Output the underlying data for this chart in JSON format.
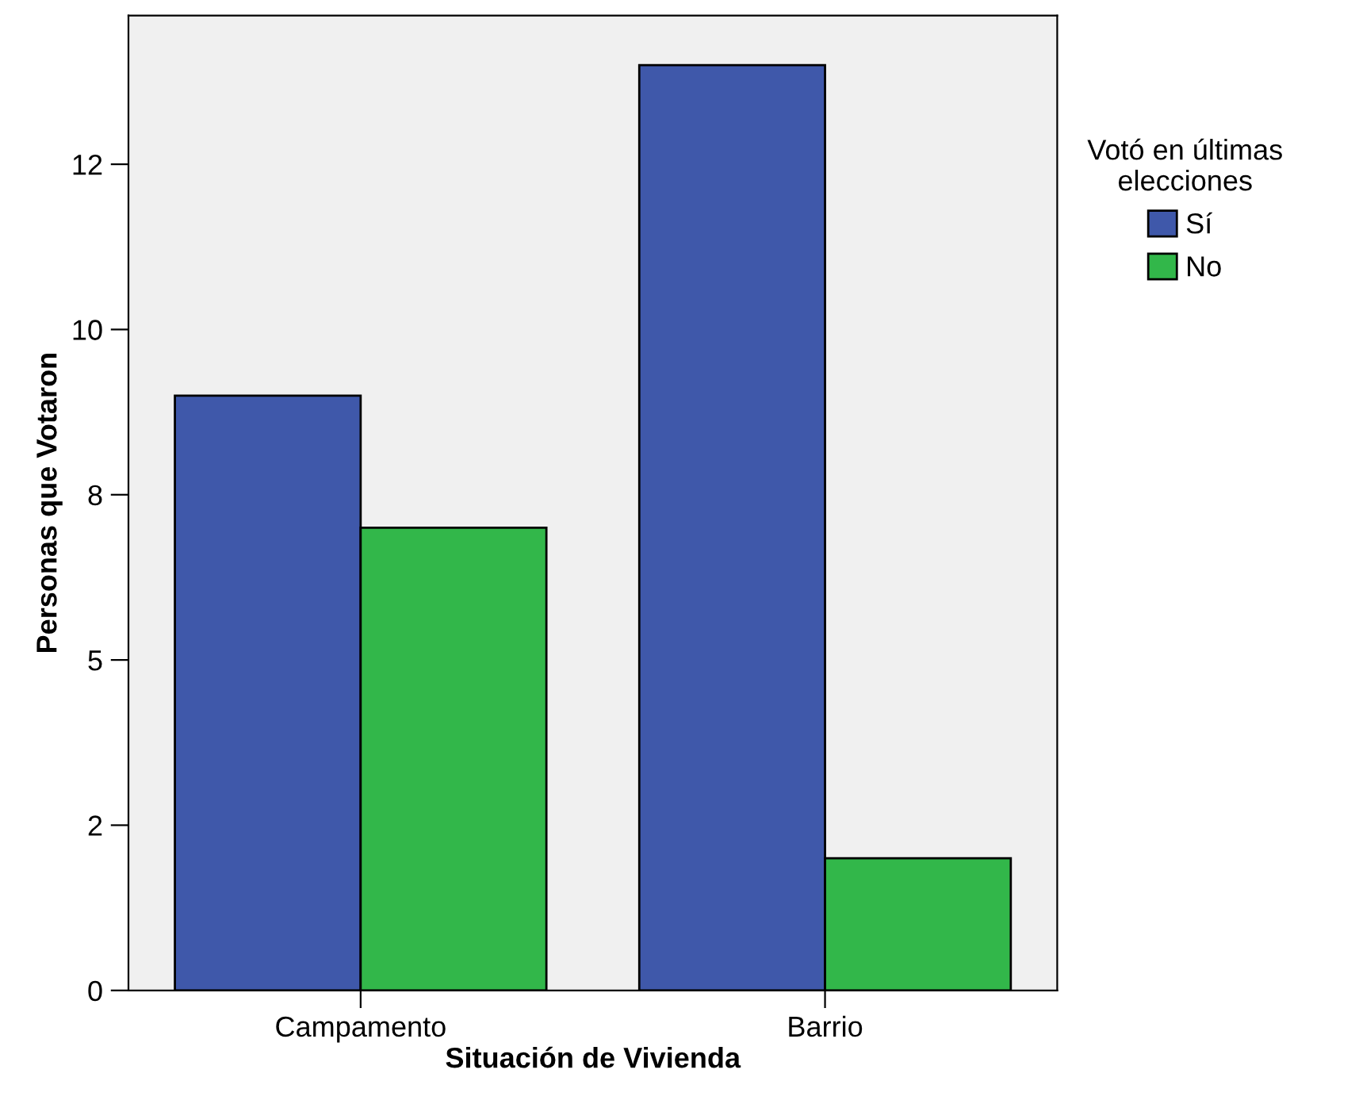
{
  "chart_data": {
    "type": "bar",
    "xlabel": "Situación de Vivienda",
    "ylabel": "Personas que Votaron",
    "legend_title": "Votó en últimas\nelecciones",
    "categories": [
      "Campamento",
      "Barrio"
    ],
    "series": [
      {
        "name": "Sí",
        "color": "#3f58aa",
        "values": [
          9,
          14
        ]
      },
      {
        "name": "No",
        "color": "#32b74a",
        "values": [
          7,
          2
        ]
      }
    ],
    "ylim": [
      0,
      14.75
    ],
    "yticks": [
      0,
      {
        "value": 2.5,
        "label": "2"
      },
      5,
      {
        "value": 7.5,
        "label": "8"
      },
      10,
      {
        "value": 12.5,
        "label": "12"
      }
    ],
    "grid": false,
    "legend": "right"
  }
}
